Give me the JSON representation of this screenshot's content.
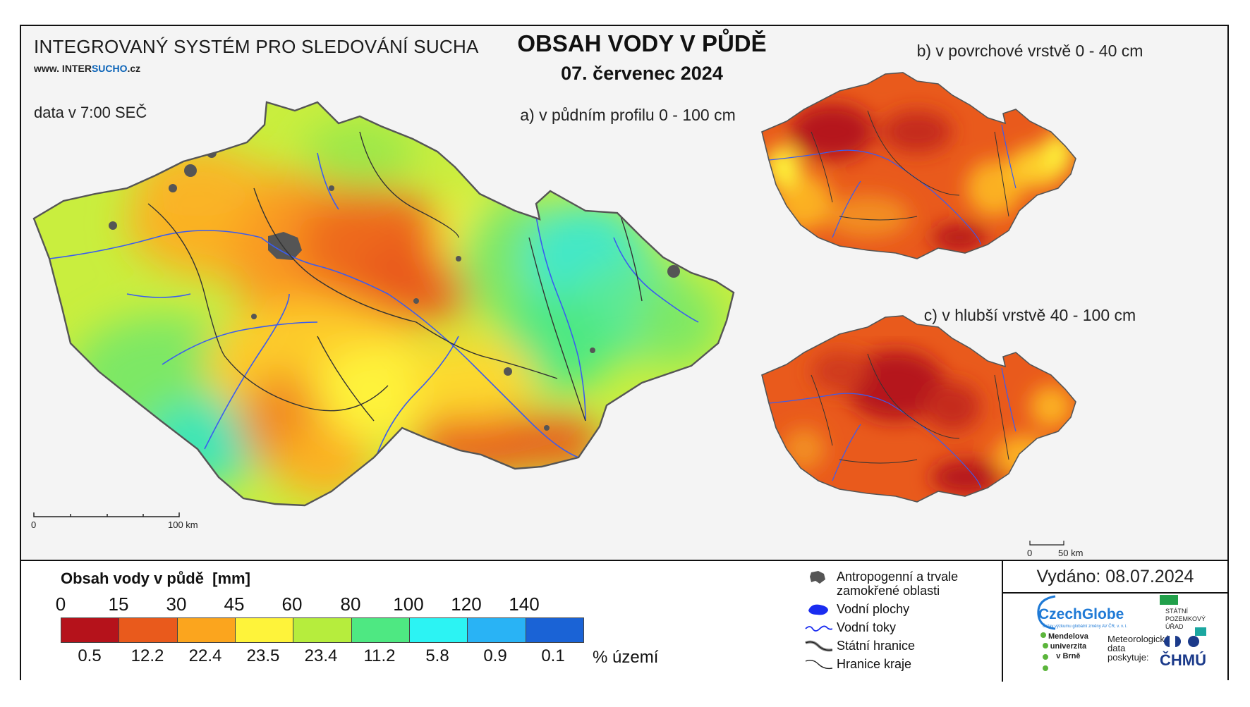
{
  "header": {
    "system_title": "INTEGROVANÝ SYSTÉM PRO SLEDOVÁNÍ SUCHA",
    "website_prefix": "www. INTER",
    "website_highlight": "SUCHO",
    "website_suffix": ".cz",
    "data_time": "data v 7:00 SEČ",
    "main_title": "OBSAH VODY V PŮDĚ",
    "date": "07. červenec 2024"
  },
  "maps": {
    "a_title": "a) v půdním profilu 0 - 100 cm",
    "b_title": "b) v povrchové vrstvě 0 - 40 cm",
    "c_title": "c) v hlubší vrstvě 40 - 100 cm",
    "scale_main": {
      "start": "0",
      "end": "100 km"
    },
    "scale_small": {
      "start": "0",
      "end": "50 km"
    }
  },
  "legend": {
    "title": "Obsah vody v půdě",
    "unit": "[mm]",
    "ticks": [
      "0",
      "15",
      "30",
      "45",
      "60",
      "80",
      "100",
      "120",
      "140"
    ],
    "classes": [
      {
        "color": "#b5121b",
        "pct": "0.5"
      },
      {
        "color": "#e95a1c",
        "pct": "12.2"
      },
      {
        "color": "#fba51e",
        "pct": "22.4"
      },
      {
        "color": "#fef33a",
        "pct": "23.5"
      },
      {
        "color": "#b6ed3d",
        "pct": "23.4"
      },
      {
        "color": "#4ee882",
        "pct": "11.2"
      },
      {
        "color": "#2cf3f3",
        "pct": "5.8"
      },
      {
        "color": "#29b3f5",
        "pct": "0.9"
      },
      {
        "color": "#1a63d6",
        "pct": "0.1"
      }
    ],
    "pct_unit": "% území"
  },
  "symbols": [
    {
      "icon": "anthropogenic-area-icon",
      "label_1": "Antropogenní a trvale",
      "label_2": "zamokřené oblasti"
    },
    {
      "icon": "water-area-icon",
      "label": "Vodní plochy"
    },
    {
      "icon": "river-icon",
      "label": "Vodní toky"
    },
    {
      "icon": "state-border-icon",
      "label": "Státní hranice"
    },
    {
      "icon": "region-border-icon",
      "label": "Hranice kraje"
    }
  ],
  "footer": {
    "issued": "Vydáno: 08.07.2024",
    "czechglobe": "CzechGlobe",
    "czechglobe_sub": "Ústav výzkumu globální změny AV ČR, v. v. i.",
    "spu_1": "STÁTNÍ",
    "spu_2": "POZEMKOVÝ",
    "spu_3": "ÚŘAD",
    "mendel_1": "Mendelova",
    "mendel_2": "univerzita",
    "mendel_3": "v Brně",
    "meteo_1": "Meteorologická",
    "meteo_2": "data",
    "meteo_3": "poskytuje:",
    "chmu": "ČHMÚ"
  }
}
